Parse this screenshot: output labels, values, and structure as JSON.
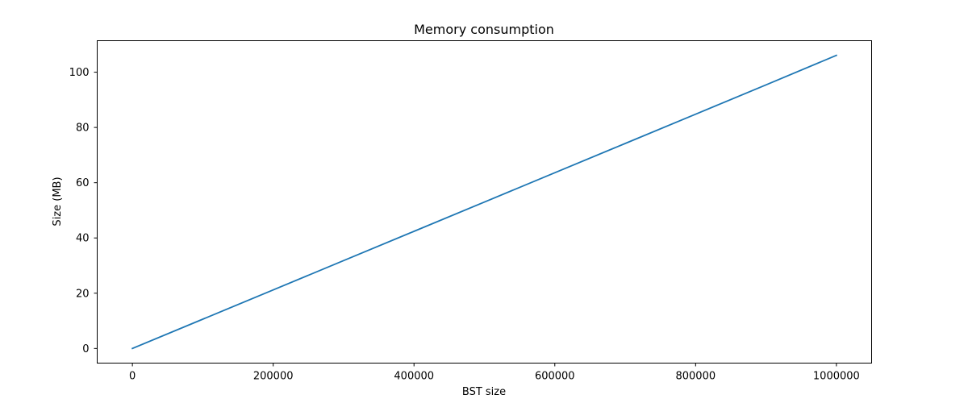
{
  "chart_data": {
    "type": "line",
    "title": "Memory consumption",
    "xlabel": "BST size",
    "ylabel": "Size (MB)",
    "xlim": [
      -50000,
      1050000
    ],
    "ylim": [
      -5.3,
      111.4
    ],
    "x_ticks": [
      0,
      200000,
      400000,
      600000,
      800000,
      1000000
    ],
    "y_ticks": [
      0,
      20,
      40,
      60,
      80,
      100
    ],
    "x_tick_labels": [
      "0",
      "200000",
      "400000",
      "600000",
      "800000",
      "1000000"
    ],
    "y_tick_labels": [
      "0",
      "20",
      "40",
      "60",
      "80",
      "100"
    ],
    "grid": false,
    "legend": "none",
    "series": [
      {
        "color": "#1f77b4",
        "x": [
          0,
          100000,
          200000,
          300000,
          400000,
          500000,
          600000,
          700000,
          800000,
          900000,
          1000000
        ],
        "y": [
          0,
          10.6,
          21.2,
          31.8,
          42.4,
          53.0,
          63.6,
          74.2,
          84.8,
          95.4,
          106.1
        ]
      }
    ]
  }
}
